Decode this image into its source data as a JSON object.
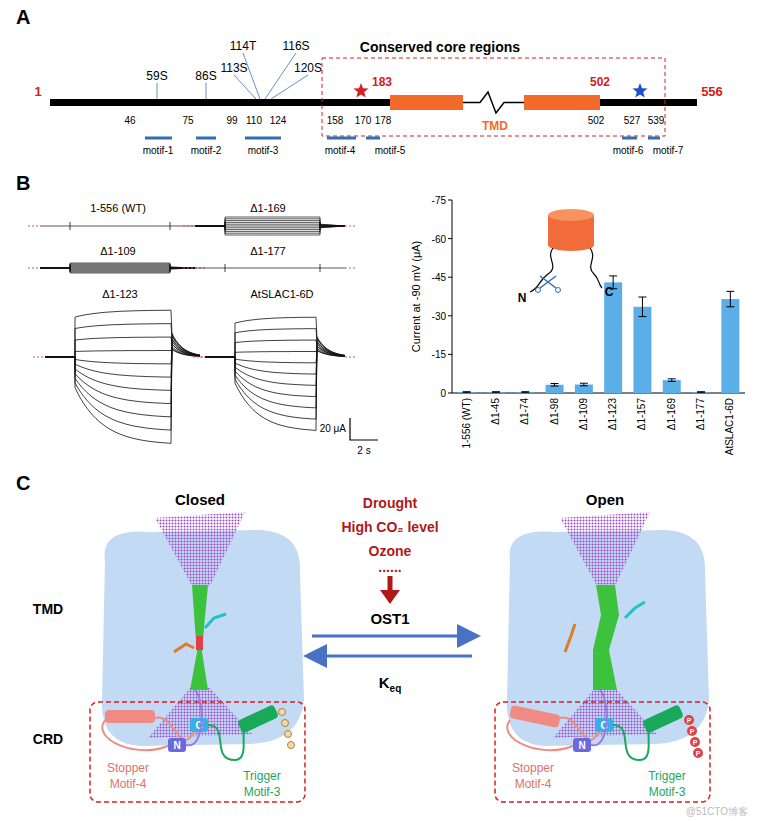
{
  "panel_a": {
    "label": "A",
    "title": "Conserved core regions",
    "start": "1",
    "end": "556",
    "core_start": "183",
    "core_end": "502",
    "tmd": "TMD",
    "sites": [
      "59S",
      "86S",
      "113S",
      "114T",
      "116S",
      "120S"
    ],
    "positions": [
      "46",
      "75",
      "99",
      "110",
      "124",
      "158",
      "170",
      "178",
      "502",
      "527",
      "539"
    ],
    "motifs": [
      "motif-1",
      "motif-2",
      "motif-3",
      "motif-4",
      "motif-5",
      "motif-6",
      "motif-7"
    ]
  },
  "panel_b": {
    "label": "B",
    "traces": [
      "1-556 (WT)",
      "Δ1-169",
      "Δ1-109",
      "Δ1-177",
      "Δ1-123",
      "AtSLAC1-6D"
    ],
    "scale_current": "20 μA",
    "scale_time": "2 s",
    "inset_n": "N",
    "inset_c": "C"
  },
  "chart_data": {
    "type": "bar",
    "y_label": "Current at -90 mV (μA)",
    "categories": [
      "1-556 (WT)",
      "Δ1-45",
      "Δ1-74",
      "Δ1-98",
      "Δ1-109",
      "Δ1-123",
      "Δ1-157",
      "Δ1-169",
      "Δ1-177",
      "AtSLAC1-6D"
    ],
    "values": [
      -0.3,
      -0.3,
      -0.3,
      -3.2,
      -3.3,
      -43,
      -33.5,
      -5,
      -0.3,
      -36.5
    ],
    "errors": [
      0.2,
      0.2,
      0.2,
      0.5,
      0.5,
      2.5,
      3.8,
      0.5,
      0.2,
      3
    ],
    "ylim": [
      0,
      -75
    ],
    "yticks": [
      -75,
      -60,
      -45,
      -30,
      -15,
      0
    ],
    "color": "#5baee8"
  },
  "panel_c": {
    "label": "C",
    "closed": "Closed",
    "open": "Open",
    "stimuli": [
      "Drought",
      "High CO₂ level",
      "Ozone",
      "......"
    ],
    "kinase": "OST1",
    "keq": {
      "main": "K",
      "sub": "eq"
    },
    "tmd": "TMD",
    "crd": "CRD",
    "stopper": [
      "Stopper",
      "Motif-4"
    ],
    "trigger": [
      "Trigger",
      "Motif-3"
    ],
    "n": "N",
    "c": "C",
    "phospho": "P"
  },
  "watermark": "@51CTO博客"
}
